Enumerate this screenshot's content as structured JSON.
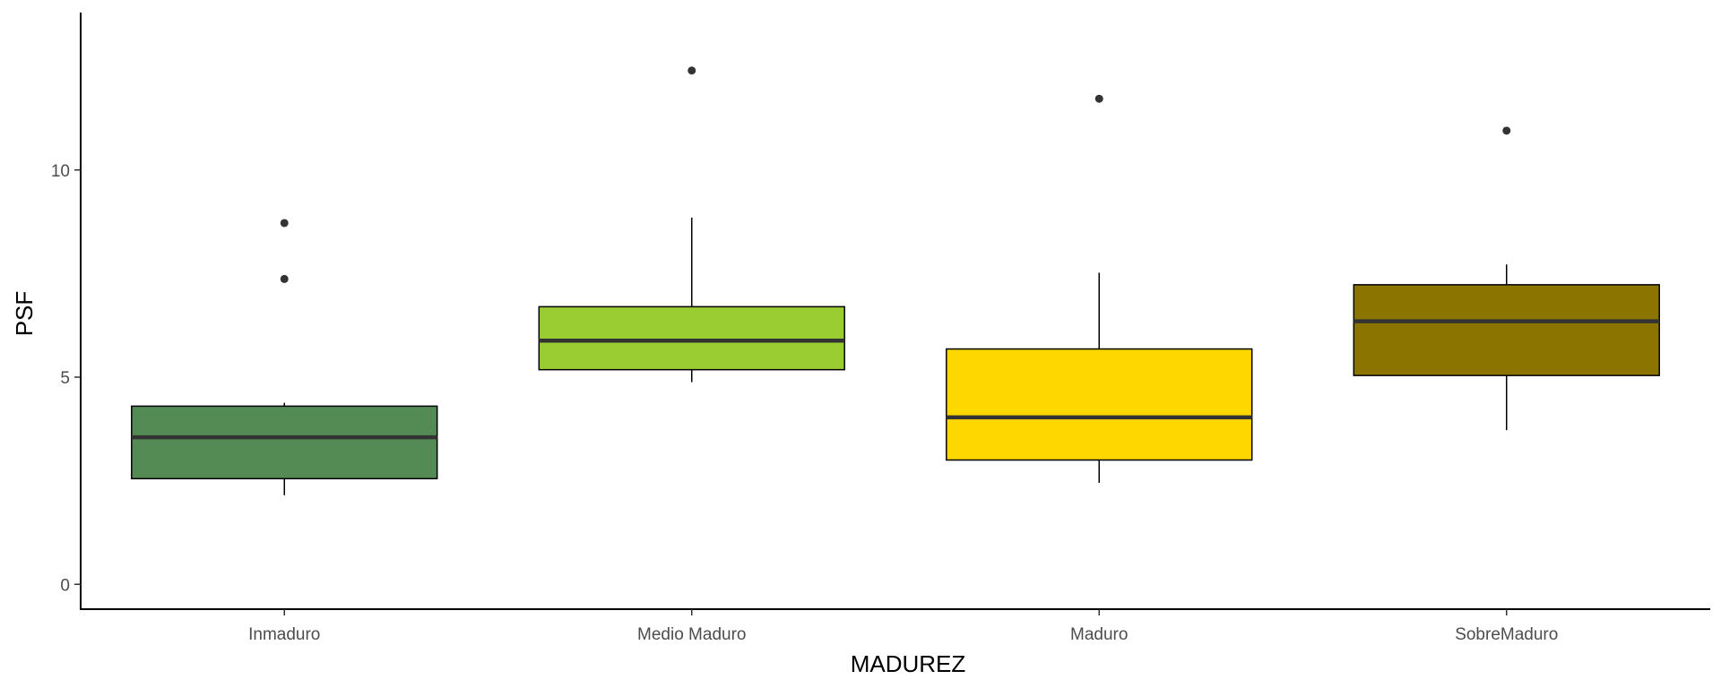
{
  "chart_data": {
    "type": "boxplot",
    "xlabel": "MADUREZ",
    "ylabel": "PSF",
    "categories": [
      "Inmaduro",
      "Medio Maduro",
      "Maduro",
      "SobreMaduro"
    ],
    "ylim": [
      -0.6,
      13.8
    ],
    "yticks": [
      0,
      5,
      10
    ],
    "grid": false,
    "boxes": [
      {
        "category": "Inmaduro",
        "fill": "#548b54",
        "whisker_low": 2.15,
        "q1": 2.55,
        "median": 3.55,
        "q3": 4.3,
        "whisker_high": 4.38,
        "outliers": [
          7.37,
          8.72
        ]
      },
      {
        "category": "Medio Maduro",
        "fill": "#9acd32",
        "whisker_low": 4.88,
        "q1": 5.18,
        "median": 5.88,
        "q3": 6.7,
        "whisker_high": 8.85,
        "outliers": [
          12.4
        ]
      },
      {
        "category": "Maduro",
        "fill": "#ffd700",
        "whisker_low": 2.45,
        "q1": 3.0,
        "median": 4.03,
        "q3": 5.68,
        "whisker_high": 7.52,
        "outliers": [
          11.72
        ]
      },
      {
        "category": "SobreMaduro",
        "fill": "#8b7500",
        "whisker_low": 3.72,
        "q1": 5.04,
        "median": 6.35,
        "q3": 7.23,
        "whisker_high": 7.72,
        "outliers": [
          10.95
        ]
      }
    ]
  }
}
